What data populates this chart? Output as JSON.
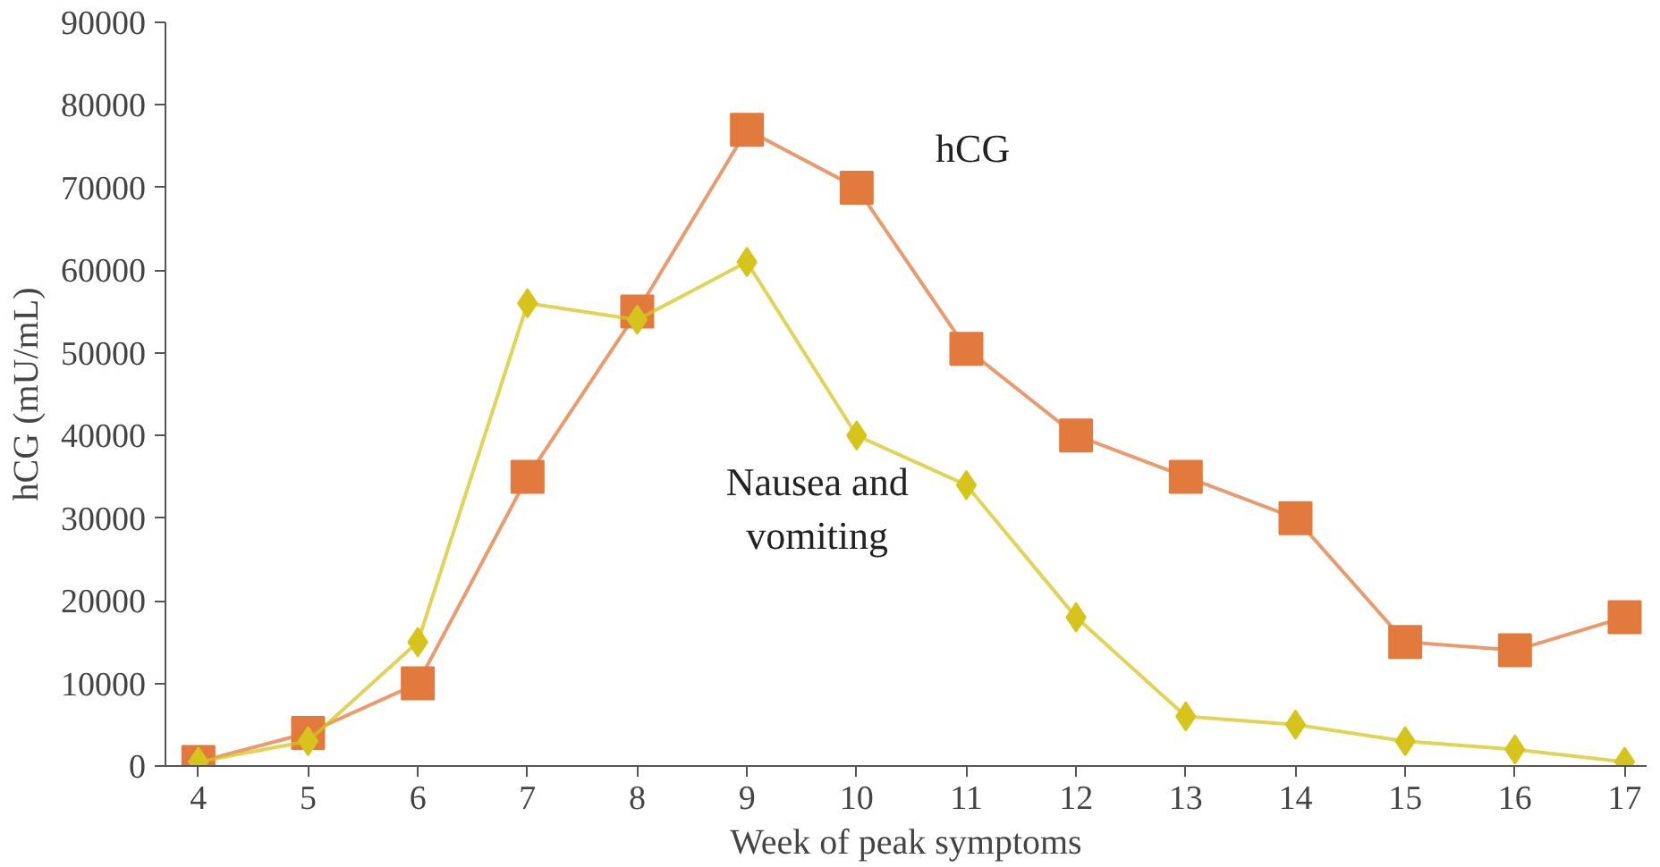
{
  "chart_data": {
    "type": "line",
    "xlabel": "Week of peak symptoms",
    "ylabel": "hCG (mU/mL)",
    "x": [
      4,
      5,
      6,
      7,
      8,
      9,
      10,
      11,
      12,
      13,
      14,
      15,
      16,
      17
    ],
    "series": [
      {
        "name": "hCG",
        "color": "#e27a3e",
        "marker": "square",
        "values": [
          500,
          4000,
          10000,
          35000,
          55000,
          77000,
          70000,
          50500,
          40000,
          35000,
          30000,
          15000,
          14000,
          18000
        ]
      },
      {
        "name": "Nausea and vomiting",
        "color": "#d6c41c",
        "marker": "diamond",
        "values": [
          500,
          3000,
          15000,
          56000,
          54000,
          61000,
          40000,
          34000,
          18000,
          6000,
          5000,
          3000,
          2000,
          500
        ]
      }
    ],
    "xlim": [
      3.7,
      17.2
    ],
    "xticks": [
      4,
      5,
      6,
      7,
      8,
      9,
      10,
      11,
      12,
      13,
      14,
      15,
      16,
      17
    ],
    "ylim": [
      0,
      90000
    ],
    "yticks": [
      0,
      10000,
      20000,
      30000,
      40000,
      50000,
      60000,
      70000,
      80000,
      90000
    ],
    "grid": false,
    "line_style": "solid"
  }
}
